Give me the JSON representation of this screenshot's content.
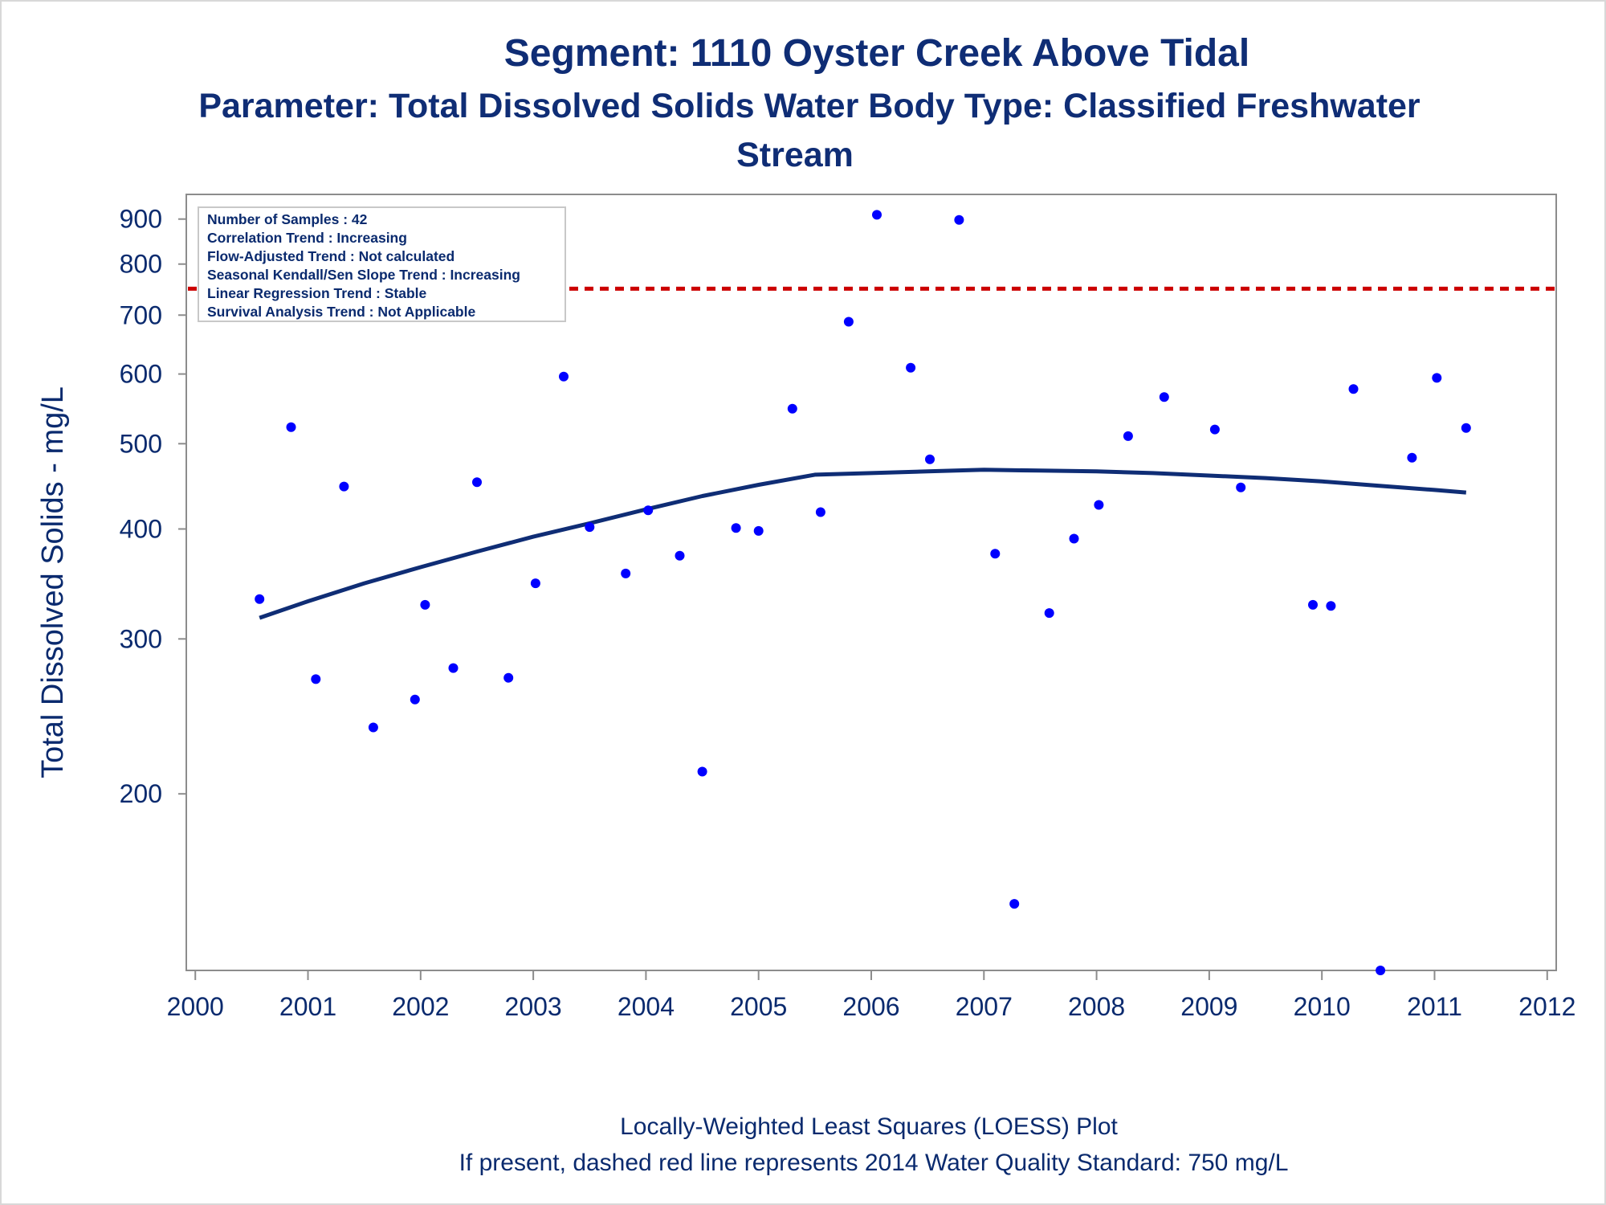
{
  "chart_data": {
    "type": "scatter",
    "title": "Segment: 1110  Oyster Creek Above Tidal",
    "subtitle_line1": "Parameter: Total Dissolved Solids   Water Body Type: Classified Freshwater",
    "subtitle_line2": "Stream",
    "ylabel": "Total Dissolved Solids - mg/L",
    "xlabel": "",
    "footnote_line1": "Locally-Weighted Least Squares (LOESS) Plot",
    "footnote_line2": "If present, dashed red line represents 2014 Water Quality Standard: 750   mg/L",
    "y_scale": "log",
    "ylim": [
      126,
      960
    ],
    "xlim": [
      1999.92,
      2012.08
    ],
    "y_ticks": [
      200,
      300,
      400,
      500,
      600,
      700,
      800,
      900
    ],
    "x_ticks": [
      2000,
      2001,
      2002,
      2003,
      2004,
      2005,
      2006,
      2007,
      2008,
      2009,
      2010,
      2011,
      2012
    ],
    "grid": false,
    "standard_line": {
      "value": 750,
      "color": "#cc0000",
      "style": "dashed"
    },
    "stats_box": {
      "placement": "top-left",
      "lines": [
        "Number of Samples : 42",
        "Correlation Trend : Increasing",
        "Flow-Adjusted Trend : Not calculated",
        "Seasonal Kendall/Sen Slope Trend : Increasing",
        "Linear Regression Trend : Stable",
        "Survival Analysis Trend : Not Applicable"
      ]
    },
    "series": [
      {
        "kind": "points",
        "color": "#0000ff",
        "x": [
          2000.57,
          2000.85,
          2001.07,
          2001.32,
          2001.58,
          2001.95,
          2002.04,
          2002.29,
          2002.5,
          2002.78,
          2003.02,
          2003.27,
          2003.5,
          2003.82,
          2004.02,
          2004.3,
          2004.5,
          2004.8,
          2005.0,
          2005.3,
          2005.55,
          2005.8,
          2006.05,
          2006.35,
          2006.52,
          2006.78,
          2007.1,
          2007.27,
          2007.58,
          2007.8,
          2008.02,
          2008.28,
          2008.6,
          2009.05,
          2009.28,
          2009.92,
          2010.08,
          2010.28,
          2010.52,
          2010.8,
          2011.02,
          2011.28
        ],
        "y": [
          333,
          522,
          270,
          447,
          238,
          256,
          328,
          278,
          452,
          271,
          347,
          596,
          402,
          356,
          420,
          373,
          212,
          401,
          398,
          548,
          418,
          688,
          910,
          610,
          480,
          898,
          375,
          150,
          321,
          390,
          426,
          510,
          565,
          519,
          446,
          328,
          327,
          577,
          126,
          482,
          594,
          521
        ]
      },
      {
        "kind": "loess",
        "color": "#0f2d75",
        "x": [
          2000.57,
          2001.0,
          2001.5,
          2002.0,
          2002.5,
          2003.0,
          2003.5,
          2004.0,
          2004.5,
          2005.0,
          2005.5,
          2006.0,
          2006.5,
          2007.0,
          2007.5,
          2008.0,
          2008.5,
          2009.0,
          2009.5,
          2010.0,
          2010.5,
          2011.0,
          2011.28
        ],
        "y": [
          317,
          331,
          347,
          362,
          377,
          392,
          406,
          421,
          436,
          449,
          461,
          463,
          465,
          467,
          466,
          465,
          463,
          460,
          457,
          453,
          448,
          443,
          440
        ]
      }
    ]
  }
}
